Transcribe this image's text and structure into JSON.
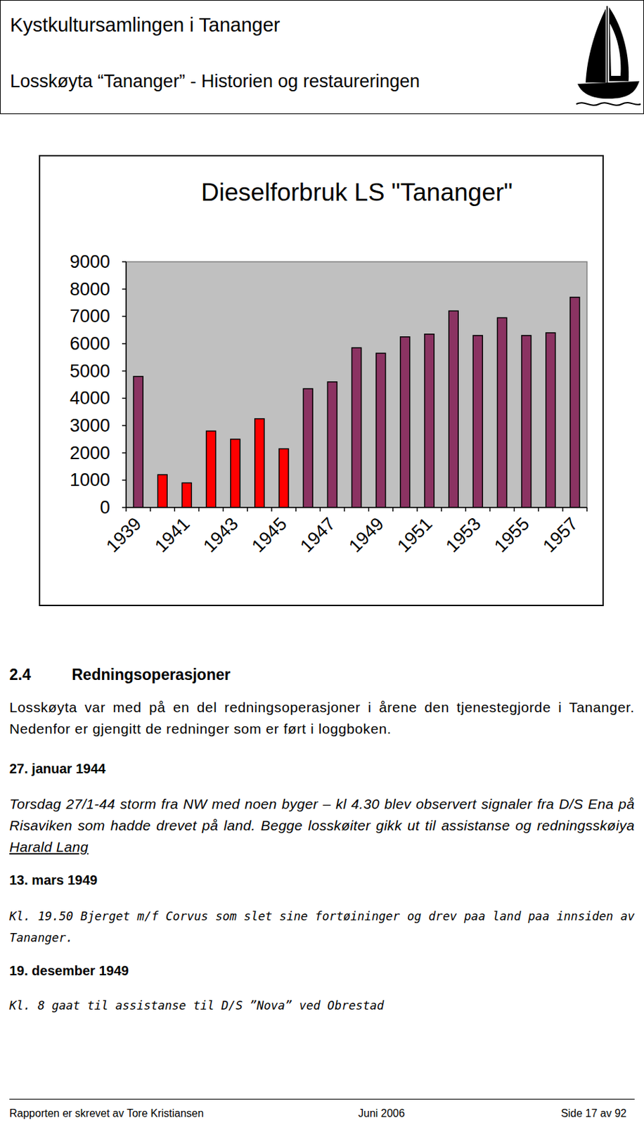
{
  "header": {
    "title": "Kystkultursamlingen i Tananger",
    "subtitle": "Losskøyta “Tananger” - Historien og restaureringen"
  },
  "chart_data": {
    "type": "bar",
    "title": "Dieselforbruk LS \"Tananger\"",
    "categories": [
      "1939",
      null,
      "1941",
      null,
      "1943",
      null,
      "1945",
      null,
      "1947",
      null,
      "1949",
      null,
      "1951",
      null,
      "1953",
      null,
      "1955",
      null,
      "1957"
    ],
    "values": [
      4800,
      1200,
      900,
      2800,
      2500,
      3250,
      2150,
      4350,
      4600,
      5850,
      5650,
      6250,
      6350,
      7200,
      6300,
      6950,
      6300,
      6400,
      7700
    ],
    "colors": [
      "#8b3362",
      "#ff0000",
      "#ff0000",
      "#ff0000",
      "#ff0000",
      "#ff0000",
      "#ff0000",
      "#8b3362",
      "#8b3362",
      "#8b3362",
      "#8b3362",
      "#8b3362",
      "#8b3362",
      "#8b3362",
      "#8b3362",
      "#8b3362",
      "#8b3362",
      "#8b3362",
      "#8b3362"
    ],
    "ylim": [
      0,
      9000
    ],
    "yticks": [
      0,
      1000,
      2000,
      3000,
      4000,
      5000,
      6000,
      7000,
      8000,
      9000
    ],
    "grid": false
  },
  "section": {
    "number": "2.4",
    "heading": "Redningsoperasjoner",
    "paragraph": "Losskøyta var med på en del redningsoperasjoner i årene den tjenestegjorde i Tananger. Nedenfor er gjengitt de redninger som er ført i loggboken."
  },
  "entries": [
    {
      "date": "27. januar 1944",
      "text": "Torsdag 27/1-44 storm fra NW med noen byger – kl 4.30 blev observert signaler fra D/S Ena på Risaviken som hadde drevet på land. Begge losskøiter gikk ut til assistanse og redningsskøiya ",
      "underlined": "Harald Lang"
    },
    {
      "date": "13. mars 1949",
      "text": "Kl. 19.50 Bjerget m/f Corvus som slet sine fortøininger og drev paa land paa innsiden av Tananger."
    },
    {
      "date": "19. desember 1949",
      "text": "Kl. 8 gaat til assistanse til D/S ”Nova” ved Obrestad"
    }
  ],
  "footer": {
    "author": "Rapporten er skrevet av Tore Kristiansen",
    "date": "Juni 2006",
    "page": "Side 17 av 92"
  }
}
